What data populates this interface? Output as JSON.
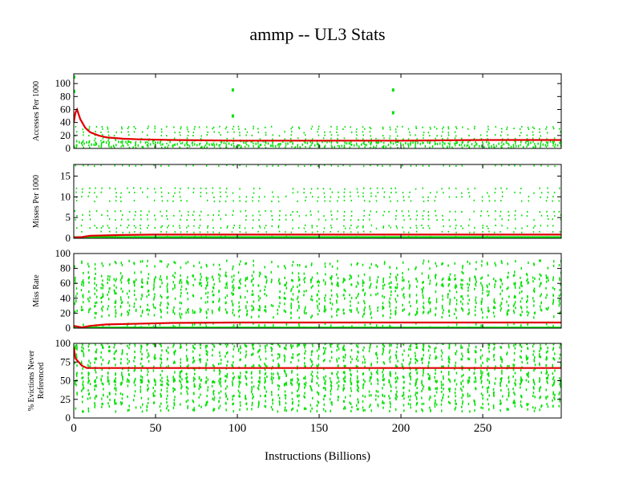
{
  "title": "ammp -- UL3  Stats",
  "chart_data": [
    {
      "type": "scatter",
      "ylabel": [
        "Accesses Per 1000"
      ],
      "ylim": [
        0,
        115
      ],
      "yticks": [
        0,
        20,
        40,
        60,
        80,
        100
      ],
      "scatter_levels": [
        2,
        5,
        8,
        10,
        12,
        15,
        20,
        25,
        30,
        33
      ],
      "scatter_outliers": [
        {
          "x": 97,
          "y": 90
        },
        {
          "x": 97,
          "y": 50
        },
        {
          "x": 195,
          "y": 90
        },
        {
          "x": 195,
          "y": 55
        },
        {
          "x": 0,
          "y": 110
        },
        {
          "x": 0,
          "y": 88
        }
      ],
      "line": {
        "color": "#e00000",
        "x": [
          0,
          1,
          2,
          4,
          7,
          10,
          15,
          20,
          30,
          40,
          60,
          100,
          150,
          200,
          250,
          298
        ],
        "y": [
          40,
          55,
          60,
          45,
          32,
          25,
          20,
          17,
          15,
          14,
          13,
          12,
          12,
          12,
          13,
          13
        ]
      }
    },
    {
      "type": "scatter",
      "ylabel": [
        "Misses Per 1000"
      ],
      "ylim": [
        0,
        17.8
      ],
      "yticks": [
        0,
        5,
        10,
        15
      ],
      "scatter_levels": [
        0.3,
        1.5,
        2.5,
        3,
        4.5,
        5.5,
        6.5,
        9,
        10,
        11,
        12,
        17.5
      ],
      "scatter_outliers": [],
      "line": {
        "color": "#e00000",
        "x": [
          0,
          5,
          10,
          30,
          50,
          298
        ],
        "y": [
          0.2,
          0.3,
          0.6,
          0.8,
          0.9,
          0.9
        ]
      }
    },
    {
      "type": "scatter",
      "ylabel": [
        "Miss Rate"
      ],
      "ylim": [
        0,
        100
      ],
      "yticks": [
        0,
        20,
        40,
        60,
        80,
        100
      ],
      "scatter_levels": [
        1,
        20,
        25,
        30,
        40,
        45,
        55,
        60,
        65,
        70,
        85
      ],
      "scatter_outliers": [],
      "line": {
        "color": "#e00000",
        "x": [
          0,
          5,
          10,
          20,
          40,
          60,
          100,
          298
        ],
        "y": [
          3,
          1,
          3,
          5,
          6,
          7,
          7.5,
          7.5
        ]
      }
    },
    {
      "type": "scatter",
      "ylabel": [
        "% Evictions Never",
        "Referenced"
      ],
      "ylim": [
        0,
        100
      ],
      "yticks": [
        0,
        25,
        50,
        75,
        100
      ],
      "scatter_levels": [
        15,
        25,
        35,
        45,
        50,
        55,
        65,
        75,
        85,
        95,
        100
      ],
      "scatter_outliers": [],
      "line": {
        "color": "#e00000",
        "x": [
          0,
          1,
          3,
          5,
          8,
          298
        ],
        "y": [
          95,
          80,
          75,
          70,
          67,
          67
        ]
      }
    }
  ],
  "xaxis": {
    "label": "Instructions (Billions)",
    "xlim": [
      0,
      298
    ],
    "xticks": [
      0,
      50,
      100,
      150,
      200,
      250
    ]
  },
  "colors": {
    "scatter": "#00e000",
    "line": "#e00000",
    "axis": "#000000"
  }
}
